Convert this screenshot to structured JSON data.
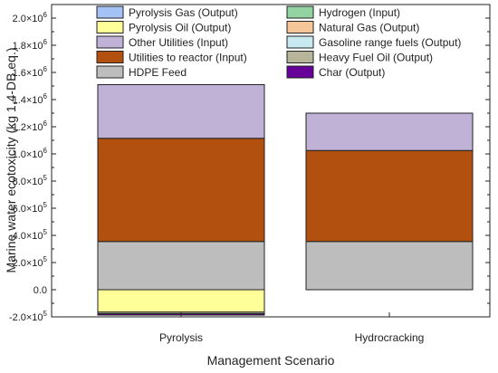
{
  "chart_data": {
    "type": "bar",
    "stacked": true,
    "xlabel": "Management Scenario",
    "ylabel": "Marine water ecotoxicity (kg 1,4-DB eq.)",
    "categories": [
      "Pyrolysis",
      "Hydrocracking"
    ],
    "ylim": [
      -200000,
      2100000
    ],
    "yticks": [
      {
        "value": -200000,
        "mantissa": "-2.0",
        "exp": "5"
      },
      {
        "value": 0,
        "mantissa": "0.0",
        "exp": ""
      },
      {
        "value": 200000,
        "mantissa": "2.0",
        "exp": "5"
      },
      {
        "value": 400000,
        "mantissa": "4.0",
        "exp": "5"
      },
      {
        "value": 600000,
        "mantissa": "6.0",
        "exp": "5"
      },
      {
        "value": 800000,
        "mantissa": "8.0",
        "exp": "5"
      },
      {
        "value": 1000000,
        "mantissa": "1.0",
        "exp": "6"
      },
      {
        "value": 1200000,
        "mantissa": "1.2",
        "exp": "6"
      },
      {
        "value": 1400000,
        "mantissa": "1.4",
        "exp": "6"
      },
      {
        "value": 1600000,
        "mantissa": "1.6",
        "exp": "6"
      },
      {
        "value": 1800000,
        "mantissa": "1.8",
        "exp": "6"
      },
      {
        "value": 2000000,
        "mantissa": "2.0",
        "exp": "6"
      }
    ],
    "tick_times": "×10",
    "series": [
      {
        "name": "Pyrolysis Gas (Output)",
        "color": "#a4c2f4",
        "values": [
          0,
          0
        ]
      },
      {
        "name": "Pyrolysis Oil (Output)",
        "color": "#ffff99",
        "values": [
          -165000,
          0
        ]
      },
      {
        "name": "Other Utilities (Input)",
        "color": "#c0b2d6",
        "values": [
          395000,
          275000
        ]
      },
      {
        "name": "Utilities to reactor (Input)",
        "color": "#b1500f",
        "values": [
          760000,
          670000
        ]
      },
      {
        "name": "HDPE Feed",
        "color": "#bdbdbd",
        "values": [
          355000,
          355000
        ]
      },
      {
        "name": "Hydrogen (Input)",
        "color": "#93d3a2",
        "values": [
          0,
          0
        ]
      },
      {
        "name": "Natural Gas (Output)",
        "color": "#f6c69b",
        "values": [
          0,
          0
        ]
      },
      {
        "name": "Gasoline range fuels (Output)",
        "color": "#c7e9ef",
        "values": [
          0,
          0
        ]
      },
      {
        "name": "Heavy Fuel Oil (Output)",
        "color": "#b6b59a",
        "values": [
          -12000,
          0
        ]
      },
      {
        "name": "Char (Output)",
        "color": "#660099",
        "values": [
          -10000,
          0
        ]
      }
    ],
    "positive_stack_order": [
      "HDPE Feed",
      "Utilities to reactor (Input)",
      "Other Utilities (Input)",
      "Pyrolysis Gas (Output)",
      "Hydrogen (Input)"
    ],
    "negative_stack_order": [
      "Pyrolysis Oil (Output)",
      "Heavy Fuel Oil (Output)",
      "Char (Output)",
      "Natural Gas (Output)",
      "Gasoline range fuels (Output)"
    ],
    "legend": {
      "placement": "top",
      "columns": [
        [
          "Pyrolysis Gas (Output)",
          "Pyrolysis Oil (Output)",
          "Other Utilities (Input)",
          "Utilities to reactor (Input)",
          "HDPE Feed"
        ],
        [
          "Hydrogen (Input)",
          "Natural Gas (Output)",
          "Gasoline range fuels (Output)",
          "Heavy Fuel Oil (Output)",
          "Char (Output)"
        ]
      ]
    },
    "grid": false
  }
}
